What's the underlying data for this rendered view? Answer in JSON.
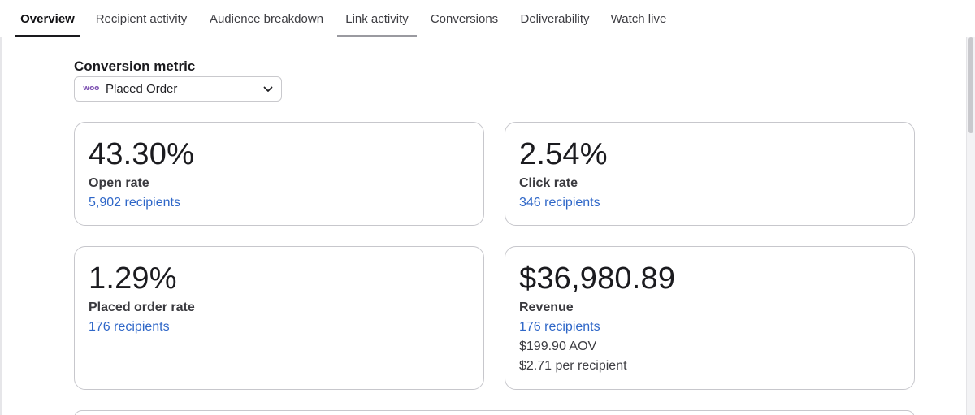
{
  "tabs": [
    {
      "label": "Overview"
    },
    {
      "label": "Recipient activity"
    },
    {
      "label": "Audience breakdown"
    },
    {
      "label": "Link activity"
    },
    {
      "label": "Conversions"
    },
    {
      "label": "Deliverability"
    },
    {
      "label": "Watch live"
    }
  ],
  "conversion_metric": {
    "label": "Conversion metric",
    "logo_text": "woo",
    "selected": "Placed Order"
  },
  "cards": {
    "open_rate": {
      "value": "43.30%",
      "label": "Open rate",
      "link": "5,902 recipients"
    },
    "click_rate": {
      "value": "2.54%",
      "label": "Click rate",
      "link": "346 recipients"
    },
    "placed_order_rate": {
      "value": "1.29%",
      "label": "Placed order rate",
      "link": "176 recipients"
    },
    "revenue": {
      "value": "$36,980.89",
      "label": "Revenue",
      "link": "176 recipients",
      "aov": "$199.90 AOV",
      "per_recipient": "$2.71 per recipient"
    }
  },
  "colors": {
    "link": "#2f67c8",
    "woo_brand": "#7f54b3",
    "active_tab_underline": "#1a1a1e",
    "card_border": "#c7c7cc"
  },
  "icons": {
    "select_chevron": "chevron-down-icon",
    "metric_logo": "woo-logo"
  }
}
